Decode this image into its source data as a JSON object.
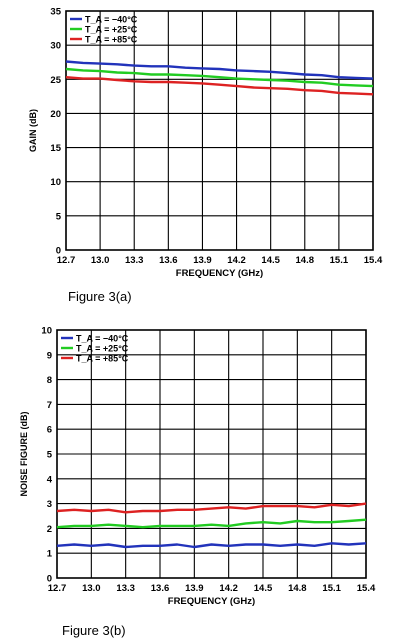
{
  "chart_data": [
    {
      "type": "line",
      "caption": "Figure 3(a)",
      "xlabel": "FREQUENCY (GHz)",
      "ylabel": "GAIN (dB)",
      "xlim": [
        12.7,
        15.4
      ],
      "ylim": [
        0,
        35
      ],
      "xticks": [
        "12.7",
        "13.0",
        "13.3",
        "13.6",
        "13.9",
        "14.2",
        "14.5",
        "14.8",
        "15.1",
        "15.4"
      ],
      "yticks": [
        "0",
        "5",
        "10",
        "15",
        "20",
        "25",
        "30",
        "35"
      ],
      "grid": true,
      "legend_position": "top-left",
      "x": [
        12.7,
        12.85,
        13.0,
        13.15,
        13.3,
        13.45,
        13.6,
        13.75,
        13.9,
        14.05,
        14.2,
        14.35,
        14.5,
        14.65,
        14.8,
        14.95,
        15.1,
        15.25,
        15.4
      ],
      "series": [
        {
          "name": "T_A = −40°C",
          "color": "#2233bb",
          "values": [
            27.6,
            27.4,
            27.3,
            27.2,
            27.0,
            26.9,
            26.9,
            26.7,
            26.6,
            26.5,
            26.3,
            26.2,
            26.1,
            25.9,
            25.7,
            25.6,
            25.3,
            25.2,
            25.1
          ]
        },
        {
          "name": "T_A = +25°C",
          "color": "#22cc22",
          "values": [
            26.5,
            26.3,
            26.2,
            26.0,
            25.9,
            25.7,
            25.7,
            25.6,
            25.5,
            25.3,
            25.1,
            25.0,
            24.9,
            24.8,
            24.6,
            24.5,
            24.2,
            24.1,
            24.0
          ]
        },
        {
          "name": "T_A = +85°C",
          "color": "#dd2222",
          "values": [
            25.3,
            25.1,
            25.1,
            24.9,
            24.7,
            24.6,
            24.6,
            24.5,
            24.4,
            24.2,
            24.0,
            23.8,
            23.7,
            23.6,
            23.4,
            23.3,
            23.0,
            22.9,
            22.8
          ]
        }
      ]
    },
    {
      "type": "line",
      "caption": "Figure 3(b)",
      "xlabel": "FREQUENCY (GHz)",
      "ylabel": "NOISE FIGURE (dB)",
      "xlim": [
        12.7,
        15.4
      ],
      "ylim": [
        0,
        10
      ],
      "xticks": [
        "12.7",
        "13.0",
        "13.3",
        "13.6",
        "13.9",
        "14.2",
        "14.5",
        "14.8",
        "15.1",
        "15.4"
      ],
      "yticks": [
        "0",
        "1",
        "2",
        "3",
        "4",
        "5",
        "6",
        "7",
        "8",
        "9",
        "10"
      ],
      "grid": true,
      "legend_position": "top-left",
      "x": [
        12.7,
        12.85,
        13.0,
        13.15,
        13.3,
        13.45,
        13.6,
        13.75,
        13.9,
        14.05,
        14.2,
        14.35,
        14.5,
        14.65,
        14.8,
        14.95,
        15.1,
        15.25,
        15.4
      ],
      "series": [
        {
          "name": "T_A = −40°C",
          "color": "#2233bb",
          "values": [
            1.3,
            1.35,
            1.3,
            1.35,
            1.25,
            1.3,
            1.3,
            1.35,
            1.25,
            1.35,
            1.3,
            1.35,
            1.35,
            1.3,
            1.35,
            1.3,
            1.4,
            1.35,
            1.4
          ]
        },
        {
          "name": "T_A = +25°C",
          "color": "#22cc22",
          "values": [
            2.05,
            2.1,
            2.1,
            2.15,
            2.1,
            2.05,
            2.1,
            2.1,
            2.1,
            2.15,
            2.1,
            2.2,
            2.25,
            2.2,
            2.3,
            2.25,
            2.25,
            2.3,
            2.35
          ]
        },
        {
          "name": "T_A = +85°C",
          "color": "#dd2222",
          "values": [
            2.7,
            2.75,
            2.7,
            2.75,
            2.65,
            2.7,
            2.7,
            2.75,
            2.75,
            2.8,
            2.85,
            2.8,
            2.9,
            2.9,
            2.9,
            2.85,
            2.95,
            2.9,
            3.0
          ]
        }
      ]
    }
  ]
}
